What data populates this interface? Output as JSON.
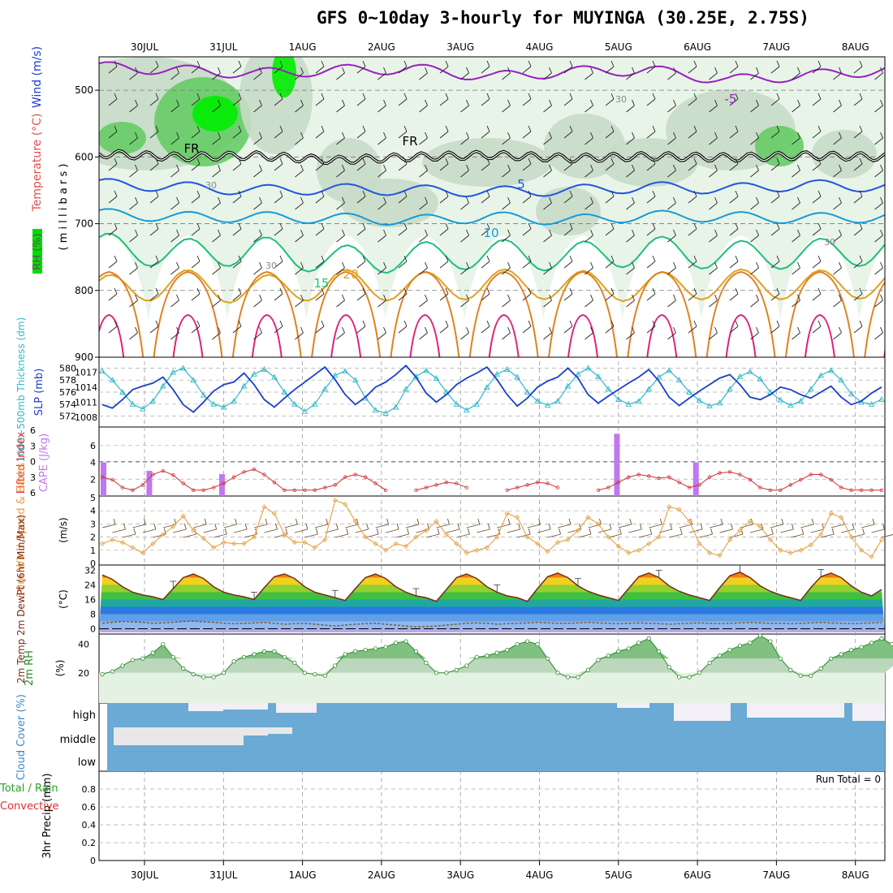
{
  "title": "GFS 0~10day 3-hourly for MUYINGA (30.25E, 2.75S)",
  "run_total": "Run Total = 0",
  "dates": [
    "30JUL",
    "31JUL",
    "1AUG",
    "2AUG",
    "3AUG",
    "4AUG",
    "5AUG",
    "6AUG",
    "7AUG",
    "8AUG"
  ],
  "colors": {
    "bg": "#ffffff",
    "rh_light": "#e8f4e8",
    "rh_mid": "#c8dcc8",
    "rh_green": "#66cc66",
    "rh_bright": "#00ee00",
    "cloud": "#6aaad4",
    "cloud_clear": "#f2eff7"
  },
  "panel_labels": {
    "upper": {
      "rh": "RH (%)",
      "temperature": "Temperature (°C)",
      "wind": "Wind (m/s)",
      "units": "( m i l l i b a r s )"
    },
    "thick": {
      "thickness": "1000~500mb Thickness (dm)",
      "slp": "SLP (mb)"
    },
    "li": {
      "lifted": "Lifted Index",
      "cape": "CAPE (J/kg)"
    },
    "wind10": {
      "label": "10m Wind Speed & Barbs",
      "units": "(m/s)"
    },
    "temp2m": {
      "label": "2m Temp 2m DewPt (6hr Min/Max)",
      "units": "(°C)"
    },
    "rh2m": {
      "label": "2m RH",
      "units": "(%)"
    },
    "cloud": {
      "label": "Cloud Cover (%)",
      "levels": [
        "high",
        "middle",
        "low"
      ]
    },
    "precip": {
      "label": "3hr Precip (mm)",
      "total": "Total / Rain",
      "conv": "Convective"
    }
  },
  "chart_data": [
    {
      "type": "contour",
      "panel": "upper-air",
      "ylabel": "m i l l i b a r s",
      "y_ticks": [
        500,
        600,
        700,
        800,
        900
      ],
      "ylim": [
        900,
        450
      ],
      "contour_labels": [
        "-5",
        "FR",
        "5",
        "10",
        "15",
        "20",
        "30"
      ],
      "freezing_level_mb": [
        595,
        600,
        598,
        605,
        600,
        597,
        602,
        599,
        601,
        598,
        600
      ],
      "temp_isotherms": [
        {
          "name": "-5",
          "mb": [
            465,
            470,
            475,
            470,
            468,
            480,
            472,
            470,
            485,
            478,
            470
          ]
        },
        {
          "name": "5",
          "mb": [
            640,
            645,
            650,
            648,
            650,
            652,
            650,
            645,
            648,
            642,
            645
          ]
        },
        {
          "name": "10",
          "mb": [
            685,
            690,
            690,
            692,
            695,
            690,
            695,
            688,
            690,
            692,
            690
          ]
        },
        {
          "name": "15",
          "mb": [
            735,
            745,
            740,
            755,
            750,
            745,
            750,
            740,
            748,
            745,
            740
          ]
        },
        {
          "name": "20",
          "mb": [
            800,
            790,
            800,
            790,
            795,
            790,
            792,
            795,
            790,
            792,
            790
          ]
        }
      ]
    },
    {
      "type": "line",
      "panel": "thickness-slp",
      "y_ticks_left": [
        572,
        574,
        576,
        578,
        580
      ],
      "y_ticks_right": [
        1008,
        1011,
        1014,
        1017
      ],
      "series": [
        {
          "name": "1000~500mb Thickness (dm)",
          "axis": "left",
          "values": [
            579.5,
            578.0,
            576.0,
            574.0,
            573.2,
            574.5,
            577.0,
            579.3,
            580.0,
            578.0,
            575.5,
            574.0,
            573.5,
            574.5,
            577.0,
            579.0,
            579.8,
            578.5,
            576.0,
            574.0,
            572.8,
            574.0,
            576.5,
            578.8,
            579.5,
            578.0,
            575.0,
            573.0,
            572.5,
            573.5,
            576.5,
            578.6,
            579.6,
            578.3,
            576.0,
            574.0,
            573.0,
            574.0,
            576.8,
            579.0,
            579.8,
            578.5,
            576.0,
            574.5,
            573.8,
            574.5,
            577.0,
            579.0,
            580.0,
            578.6,
            576.5,
            574.8,
            574.0,
            574.5,
            576.5,
            578.5,
            579.6,
            578.0,
            576.0,
            574.6,
            573.7,
            574.2,
            576.5,
            578.6,
            579.4,
            578.2,
            576.0,
            574.7,
            573.8,
            574.5,
            576.5,
            578.8,
            579.6,
            578.0,
            575.7,
            574.3,
            574.0,
            574.8
          ]
        },
        {
          "name": "SLP (mb)",
          "axis": "right",
          "values": [
            1010.5,
            1009.8,
            1011.5,
            1013.5,
            1014.2,
            1014.8,
            1016.0,
            1013.5,
            1010.5,
            1009.0,
            1011.0,
            1013.2,
            1014.5,
            1015.0,
            1016.8,
            1014.5,
            1011.5,
            1010.0,
            1011.8,
            1013.5,
            1015.0,
            1016.5,
            1018.0,
            1015.5,
            1012.5,
            1010.5,
            1012.0,
            1014.0,
            1015.0,
            1016.5,
            1018.3,
            1016.0,
            1012.8,
            1011.0,
            1012.5,
            1014.5,
            1015.8,
            1016.8,
            1018.0,
            1015.5,
            1012.5,
            1010.2,
            1011.8,
            1014.0,
            1015.2,
            1016.0,
            1017.8,
            1015.8,
            1012.5,
            1010.8,
            1012.2,
            1013.5,
            1014.8,
            1016.0,
            1017.5,
            1015.2,
            1012.0,
            1010.3,
            1011.8,
            1013.2,
            1014.5,
            1015.8,
            1016.5,
            1014.5,
            1012.0,
            1011.5,
            1012.5,
            1014.0,
            1013.5,
            1012.5,
            1011.8,
            1013.0,
            1014.2,
            1012.0,
            1010.5,
            1011.2,
            1012.8,
            1014.0
          ]
        }
      ]
    },
    {
      "type": "bar",
      "panel": "lifted-index-cape",
      "y_ticks_left": [
        -6,
        -3,
        0,
        3,
        6
      ],
      "y_ticks_right": [
        2,
        4,
        6
      ],
      "series": [
        {
          "name": "CAPE (J/kg)",
          "values": [
            {
              "day": 0.0,
              "v": 4.0
            },
            {
              "day": 0.58,
              "v": 3.0
            },
            {
              "day": 1.5,
              "v": 2.6
            },
            {
              "day": 6.5,
              "v": 7.4
            },
            {
              "day": 7.5,
              "v": 4.0
            }
          ]
        },
        {
          "name": "Lifted Index",
          "values": [
            3.0,
            3.5,
            5.0,
            5.5,
            4.5,
            2.5,
            1.8,
            2.6,
            4.2,
            5.5,
            5.5,
            5.0,
            4.2,
            3.0,
            2.0,
            1.5,
            2.5,
            4.0,
            5.5,
            5.5,
            5.5,
            5.5,
            5.0,
            4.5,
            3.0,
            2.5,
            3.0,
            4.2,
            5.5,
            6.0,
            6.0,
            5.5,
            5.0,
            4.5,
            4.0,
            4.2,
            5.0,
            5.8,
            6.0,
            6.0,
            5.5,
            5.0,
            4.5,
            4.0,
            4.2,
            5.0,
            5.8,
            6.0,
            6.0,
            5.5,
            5.0,
            4.0,
            3.0,
            2.5,
            2.8,
            3.2,
            3.0,
            4.0,
            5.0,
            4.5,
            3.0,
            2.2,
            2.0,
            2.5,
            3.5,
            5.0,
            5.5,
            5.5,
            4.5,
            3.5,
            2.5,
            2.5,
            3.5,
            5.0,
            5.5,
            5.5,
            5.5,
            5.5
          ]
        }
      ]
    },
    {
      "type": "line",
      "panel": "10m-wind",
      "y_ticks": [
        0,
        1,
        2,
        3,
        4,
        5
      ],
      "ylim": [
        0,
        5
      ],
      "series": [
        {
          "name": "10m Wind Speed (m/s)",
          "values": [
            1.5,
            1.8,
            1.6,
            1.2,
            0.8,
            1.5,
            2.2,
            2.8,
            3.6,
            2.5,
            1.9,
            1.2,
            1.6,
            1.5,
            1.5,
            2.0,
            4.3,
            3.8,
            2.2,
            1.6,
            1.6,
            1.2,
            1.8,
            4.8,
            4.5,
            3.2,
            2.0,
            1.5,
            1.0,
            1.5,
            1.3,
            2.0,
            2.5,
            3.2,
            2.2,
            1.5,
            0.8,
            1.0,
            1.2,
            2.0,
            3.8,
            3.5,
            2.0,
            1.5,
            0.9,
            1.6,
            1.8,
            2.5,
            3.5,
            3.0,
            2.0,
            1.3,
            0.8,
            1.0,
            1.5,
            2.0,
            4.3,
            4.1,
            3.2,
            1.5,
            0.8,
            0.6,
            1.8,
            2.5,
            3.2,
            2.8,
            1.8,
            1.0,
            0.8,
            1.0,
            1.4,
            2.2,
            3.8,
            3.5,
            2.0,
            1.0,
            0.5,
            1.8
          ]
        }
      ]
    },
    {
      "type": "area",
      "panel": "2m-temp",
      "y_ticks": [
        0,
        8,
        16,
        24,
        32
      ],
      "ylim": [
        -2,
        34
      ],
      "series": [
        {
          "name": "2m Temp (°C)",
          "values": [
            29.5,
            27.0,
            23.0,
            20.0,
            18.5,
            17.5,
            16.0,
            22.0,
            28.0,
            30.0,
            27.5,
            23.0,
            20.0,
            18.5,
            17.5,
            16.0,
            22.5,
            28.5,
            30.0,
            27.5,
            23.0,
            20.0,
            18.5,
            17.0,
            15.5,
            22.0,
            28.0,
            30.0,
            27.5,
            23.0,
            20.0,
            18.0,
            17.0,
            15.0,
            21.5,
            28.0,
            30.0,
            27.5,
            23.0,
            20.0,
            18.0,
            17.0,
            15.0,
            22.0,
            28.5,
            30.5,
            28.0,
            23.5,
            20.5,
            18.5,
            17.0,
            15.5,
            22.0,
            28.5,
            30.5,
            28.0,
            23.5,
            20.5,
            18.5,
            17.0,
            15.5,
            22.5,
            29.0,
            31.0,
            28.0,
            23.5,
            20.5,
            18.5,
            17.0,
            15.5,
            22.5,
            28.5,
            30.5,
            28.0,
            23.5,
            20.0,
            18.0,
            21.5
          ]
        },
        {
          "name": "2m DewPt (°C)",
          "values": [
            3.0,
            3.5,
            4.0,
            3.8,
            3.5,
            3.0,
            3.2,
            3.5,
            4.0,
            4.2,
            3.8,
            3.5,
            3.0,
            2.8,
            3.0,
            3.2,
            3.5,
            3.0,
            2.5,
            2.8,
            3.0,
            2.5,
            2.0,
            1.5,
            2.0,
            2.5,
            2.8,
            3.0,
            2.5,
            2.0,
            1.5,
            1.0,
            1.2,
            1.5,
            2.0,
            2.5,
            3.0,
            3.2,
            3.0,
            2.5,
            2.8,
            3.0,
            3.2,
            3.5,
            3.2,
            3.0,
            3.0,
            3.2,
            3.5,
            3.2,
            3.0,
            2.8,
            3.0,
            3.2,
            3.0,
            2.8,
            2.5,
            2.8,
            3.0,
            3.2,
            3.0,
            2.8,
            3.0,
            3.2,
            3.5,
            3.2,
            3.0,
            3.0,
            2.8,
            3.0,
            3.2,
            3.5,
            3.2,
            3.0,
            2.8,
            3.0,
            3.2,
            3.5
          ]
        }
      ]
    },
    {
      "type": "area",
      "panel": "2m-rh",
      "y_ticks": [
        20,
        40
      ],
      "ylim": [
        0,
        46
      ],
      "series": [
        {
          "name": "2m RH (%)",
          "values": [
            19,
            21,
            25,
            29,
            30,
            34,
            40,
            31,
            23,
            19,
            17,
            17,
            20,
            28,
            31,
            33,
            35,
            35,
            31,
            27,
            20,
            19,
            18,
            25,
            33,
            35,
            36,
            37,
            38,
            41,
            42,
            35,
            27,
            20,
            20,
            22,
            25,
            31,
            32,
            34,
            36,
            40,
            42,
            40,
            30,
            20,
            17,
            17,
            22,
            29,
            32,
            35,
            37,
            41,
            44,
            35,
            24,
            17,
            17,
            20,
            27,
            32,
            36,
            39,
            41,
            46,
            42,
            30,
            22,
            18,
            18,
            23,
            30,
            33,
            36,
            38,
            41,
            44,
            40,
            30
          ]
        }
      ]
    },
    {
      "type": "heatmap",
      "panel": "cloud-cover",
      "categories": [
        "high",
        "middle",
        "low"
      ]
    },
    {
      "type": "bar",
      "panel": "precip",
      "y_ticks": [
        0,
        0.2,
        0.4,
        0.6,
        0.8
      ],
      "ylim": [
        0,
        1
      ],
      "series": [
        {
          "name": "Total / Rain",
          "values": []
        },
        {
          "name": "Convective",
          "values": []
        }
      ]
    }
  ]
}
